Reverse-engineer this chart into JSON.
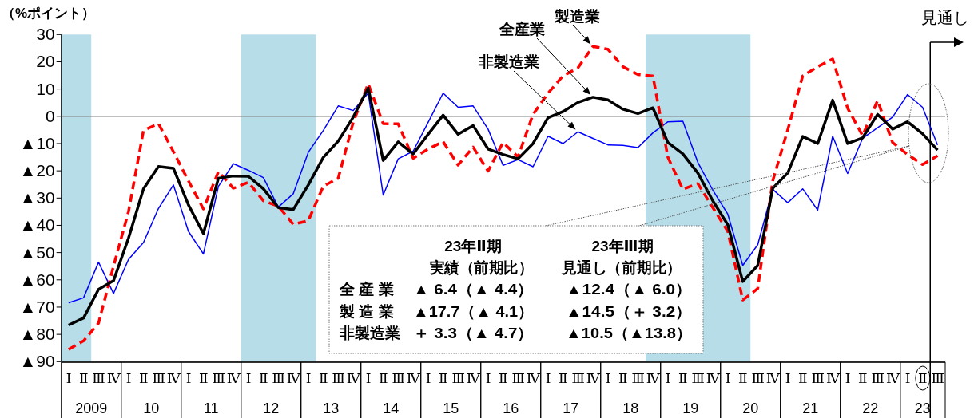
{
  "chart_data": {
    "type": "line",
    "ylabel": "（%ポイント）",
    "x": [
      "2009-02-15",
      "2009-05-15",
      "2009-08-15",
      "2009-11-15",
      "2010-02-15",
      "2010-05-15",
      "2010-08-15",
      "2010-11-15",
      "2011-02-15",
      "2011-05-15",
      "2011-08-15",
      "2011-11-15",
      "2012-02-15",
      "2012-05-15",
      "2012-08-15",
      "2012-11-15",
      "2013-02-15",
      "2013-05-15",
      "2013-08-15",
      "2013-11-15",
      "2014-02-15",
      "2014-05-15",
      "2014-08-15",
      "2014-11-15",
      "2015-02-15",
      "2015-05-15",
      "2015-08-15",
      "2015-11-15",
      "2016-02-15",
      "2016-05-15",
      "2016-08-15",
      "2016-11-15",
      "2017-02-15",
      "2017-05-15",
      "2017-08-15",
      "2017-11-15",
      "2018-02-15",
      "2018-05-15",
      "2018-08-15",
      "2018-11-15",
      "2019-02-15",
      "2019-05-15",
      "2019-08-15",
      "2019-11-15",
      "2020-02-15",
      "2020-05-15",
      "2020-08-15",
      "2020-11-15",
      "2021-02-15",
      "2021-05-15",
      "2021-08-15",
      "2021-11-15",
      "2022-02-15",
      "2022-05-15",
      "2022-08-15",
      "2022-11-15",
      "2023-02-15",
      "2023-05-15",
      "2023-08-15"
    ],
    "xlim": [
      "2009-01-01",
      "2023-10-01"
    ],
    "xticks": [
      {
        "value": "2009-07-01",
        "label": "2009"
      },
      {
        "value": "2010-07-01",
        "label": "10"
      },
      {
        "value": "2011-07-01",
        "label": "11"
      },
      {
        "value": "2012-07-01",
        "label": "12"
      },
      {
        "value": "2013-07-01",
        "label": "13"
      },
      {
        "value": "2014-07-01",
        "label": "14"
      },
      {
        "value": "2015-07-01",
        "label": "15"
      },
      {
        "value": "2016-07-01",
        "label": "16"
      },
      {
        "value": "2017-07-01",
        "label": "17"
      },
      {
        "value": "2018-07-01",
        "label": "18"
      },
      {
        "value": "2019-07-01",
        "label": "19"
      },
      {
        "value": "2020-07-01",
        "label": "20"
      },
      {
        "value": "2021-07-01",
        "label": "21"
      },
      {
        "value": "2022-07-01",
        "label": "22"
      },
      {
        "value": "2023-05-16",
        "label": "23"
      }
    ],
    "ylim": [
      -90,
      30
    ],
    "yticks": [
      30,
      20,
      10,
      0,
      {
        "value": -10,
        "label": "▲10"
      },
      {
        "value": -20,
        "label": "▲20"
      },
      {
        "value": -30,
        "label": "▲30"
      },
      {
        "value": -40,
        "label": "▲40"
      },
      {
        "value": -50,
        "label": "▲50"
      },
      {
        "value": -60,
        "label": "▲60"
      },
      {
        "value": -70,
        "label": "▲70"
      },
      {
        "value": -80,
        "label": "▲80"
      },
      {
        "value": -90,
        "label": "▲90"
      }
    ],
    "series": [
      {
        "name": "全産業",
        "color": "#000000",
        "line_style": "solid",
        "values": [
          -76.6,
          -74.0,
          -63.5,
          -60.3,
          -44.7,
          -26.6,
          -18.4,
          -19.1,
          -32.5,
          -43.0,
          -22.7,
          -21.9,
          -22.0,
          -26.6,
          -33.5,
          -34.2,
          -25.2,
          -15.1,
          -9.1,
          -0.3,
          10.4,
          -16.2,
          -9.4,
          -13.8,
          -6.6,
          0.4,
          -6.6,
          -3.4,
          -12.0,
          -14.0,
          -15.6,
          -10.0,
          -0.5,
          1.7,
          5.1,
          7.0,
          6.0,
          2.6,
          1.0,
          3.1,
          -9.6,
          -13.8,
          -20.8,
          -31.0,
          -39.8,
          -60.6,
          -54.7,
          -26.4,
          -20.8,
          -7.4,
          -10.0,
          5.9,
          -10.0,
          -7.9,
          0.7,
          -4.7,
          -2.0,
          -6.4,
          -12.4
        ]
      },
      {
        "name": "製造業",
        "color": "#ff0000",
        "line_style": "dashed",
        "values": [
          -85.5,
          -82.4,
          -75.9,
          -55,
          -35,
          -5.2,
          -2.7,
          -13.0,
          -23.7,
          -34.0,
          -20.3,
          -26.4,
          -24.2,
          -31.0,
          -33.0,
          -39.6,
          -38.3,
          -25.7,
          -22.7,
          -2.2,
          11.9,
          -2.7,
          -2.8,
          -15.4,
          -12.0,
          -9.3,
          -17.9,
          -11.3,
          -20.1,
          -9.6,
          -14.9,
          0.7,
          8.5,
          14.8,
          17.8,
          25.6,
          24.6,
          18.2,
          15.3,
          14.8,
          -15,
          -26.8,
          -24.7,
          -33.5,
          -42.2,
          -67.4,
          -63.2,
          -23.7,
          -5,
          14.8,
          18.2,
          21.0,
          3,
          -7.1,
          5.8,
          -9.6,
          -14.0,
          -17.7,
          -14.5
        ]
      },
      {
        "name": "非製造業",
        "color": "#0000ff",
        "line_style": "solid",
        "values": [
          -68.4,
          -66.6,
          -53.5,
          -65.0,
          -52.5,
          -46.3,
          -33.8,
          -25.2,
          -42.2,
          -50.5,
          -25.7,
          -17.4,
          -19.8,
          -22.5,
          -33.3,
          -28.4,
          -13.2,
          -5.2,
          3.8,
          2.1,
          8.5,
          -28.9,
          -15.6,
          -12.8,
          -2.2,
          8.5,
          3.3,
          3.8,
          -4.7,
          -18.0,
          -15.9,
          -18.5,
          -7.3,
          -10.0,
          -5.7,
          -8.1,
          -10.5,
          -10.7,
          -11.5,
          -6.1,
          -2.0,
          -1.8,
          -16.9,
          -27.1,
          -35.9,
          -54.7,
          -47.1,
          -26.8,
          -31.7,
          -26.6,
          -34.4,
          -7.3,
          -21.0,
          -8.1,
          -4.2,
          -0.3,
          8.0,
          3.3,
          -10.5
        ]
      }
    ],
    "bands": [
      {
        "axis": "x",
        "from": "2009-01-01",
        "to": "2009-07-01",
        "color": "#b7dde8"
      },
      {
        "axis": "x",
        "from": "2012-01-01",
        "to": "2013-04-01",
        "color": "#b7dde8"
      },
      {
        "axis": "x",
        "from": "2018-10-01",
        "to": "2020-07-01",
        "color": "#b7dde8"
      }
    ],
    "ref_lines": [
      {
        "axis": "y",
        "value": 0,
        "color": "#808080"
      },
      {
        "axis": "x",
        "value": "2023-07-01",
        "label": "見通し",
        "color": "#000000"
      }
    ],
    "annotations": [
      "Ⅰ",
      "Ⅱ",
      "Ⅲ",
      "Ⅳ",
      "Ⅰ",
      "Ⅱ",
      "Ⅲ",
      "Ⅳ",
      "Ⅰ",
      "Ⅱ",
      "Ⅲ",
      "Ⅳ",
      "Ⅰ",
      "Ⅱ",
      "Ⅲ",
      "Ⅳ",
      "Ⅰ",
      "Ⅱ",
      "Ⅲ",
      "Ⅳ",
      "Ⅰ",
      "Ⅱ",
      "Ⅲ",
      "Ⅳ",
      "Ⅰ",
      "Ⅱ",
      "Ⅲ",
      "Ⅳ",
      "Ⅰ",
      "Ⅱ",
      "Ⅲ",
      "Ⅳ",
      "Ⅰ",
      "Ⅱ",
      "Ⅲ",
      "Ⅳ",
      "Ⅰ",
      "Ⅱ",
      "Ⅲ",
      "Ⅳ",
      "Ⅰ",
      "Ⅱ",
      "Ⅲ",
      "Ⅳ",
      "Ⅰ",
      "Ⅱ",
      "Ⅲ",
      "Ⅳ",
      "Ⅰ",
      "Ⅱ",
      "Ⅲ",
      "Ⅳ",
      "Ⅰ",
      "Ⅱ",
      "Ⅲ",
      "Ⅳ",
      "Ⅰ",
      "Ⅱ",
      "Ⅲ",
      "23年Ⅱ期",
      "実績（前期比）",
      "23年Ⅲ期",
      "見通し（前期比）",
      "全 産 業",
      "▲ 6.4（▲ 4.4）",
      "▲12.4（▲ 6.0）",
      "製 造 業",
      "▲17.7（▲ 4.1）",
      "▲14.5（＋ 3.2）",
      "非製造業",
      "＋ 3.3（▲ 4.7）",
      "▲10.5（▲13.8）"
    ],
    "grid": false
  }
}
